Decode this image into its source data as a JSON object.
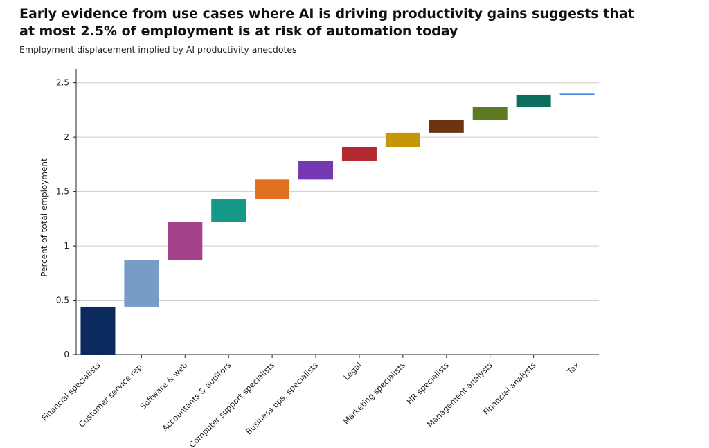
{
  "chart_data": {
    "type": "waterfall",
    "title": "Early evidence from use cases where AI is driving productivity gains suggests that at most 2.5% of employment is at risk of automation today",
    "subtitle": "Employment displacement implied by AI productivity anecdotes",
    "y_label": "Percent of total employment",
    "categories": [
      "Financial specialists",
      "Customer service rep.",
      "Software & web",
      "Accountants & auditors",
      "Computer support specialists",
      "Business ops. specialists",
      "Legal",
      "Marketing specialists",
      "HR specialists",
      "Management analysts",
      "Financial analysts",
      "Tax"
    ],
    "values": [
      0.44,
      0.43,
      0.35,
      0.21,
      0.18,
      0.17,
      0.13,
      0.13,
      0.12,
      0.12,
      0.11,
      0.01
    ],
    "colors": [
      "#0b2a5e",
      "#789cc8",
      "#a3428a",
      "#17998a",
      "#e0711e",
      "#7637b3",
      "#b52a32",
      "#c59708",
      "#6b3510",
      "#5d7a22",
      "#0d6e5f",
      "#3d7ee0"
    ],
    "ylim": [
      0,
      2.6
    ],
    "yticks": [
      0,
      0.5,
      1,
      1.5,
      2,
      2.5
    ],
    "grid": true
  }
}
